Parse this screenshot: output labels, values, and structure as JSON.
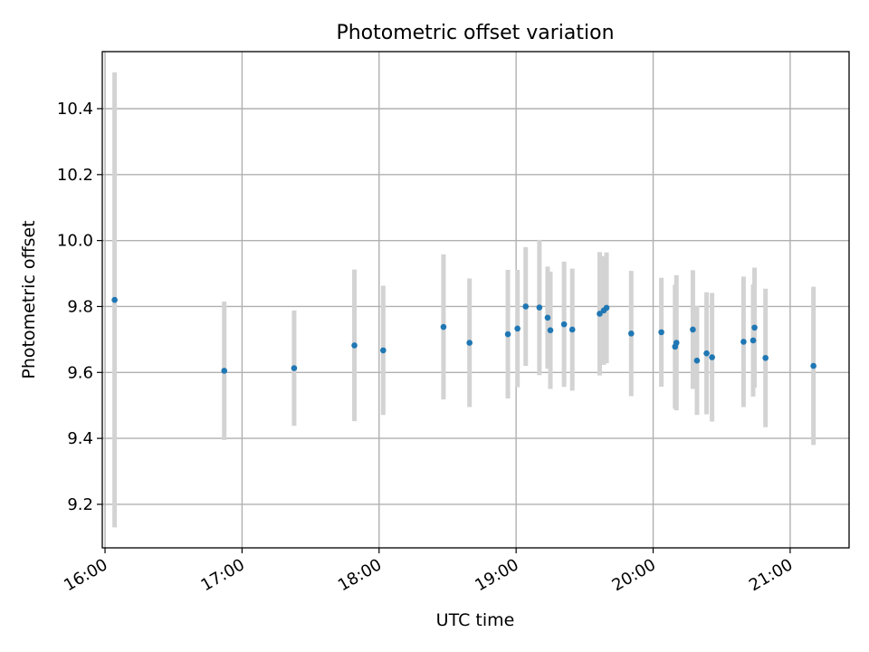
{
  "chart_data": {
    "type": "scatter",
    "title": "Photometric offset variation",
    "xlabel": "UTC time",
    "ylabel": "Photometric offset",
    "x_unit": "hours UTC",
    "xlim": [
      15.98,
      21.43
    ],
    "ylim": [
      9.068,
      10.573
    ],
    "xticks": [
      16,
      17,
      18,
      19,
      20,
      21
    ],
    "xtick_labels": [
      "16:00",
      "17:00",
      "18:00",
      "19:00",
      "20:00",
      "21:00"
    ],
    "yticks": [
      9.2,
      9.4,
      9.6,
      9.8,
      10.0,
      10.2,
      10.4
    ],
    "ytick_labels": [
      "9.2",
      "9.4",
      "9.6",
      "9.8",
      "10.0",
      "10.2",
      "10.4"
    ],
    "grid": true,
    "colors": {
      "point": "#1f77b4",
      "errorbar": "#d3d3d3"
    },
    "series": [
      {
        "points": [
          {
            "x": 16.07,
            "y": 9.82,
            "err": 0.69
          },
          {
            "x": 16.87,
            "y": 9.605,
            "err": 0.21
          },
          {
            "x": 17.38,
            "y": 9.613,
            "err": 0.175
          },
          {
            "x": 17.82,
            "y": 9.682,
            "err": 0.23
          },
          {
            "x": 18.03,
            "y": 9.667,
            "err": 0.196
          },
          {
            "x": 18.47,
            "y": 9.738,
            "err": 0.22
          },
          {
            "x": 18.66,
            "y": 9.69,
            "err": 0.195
          },
          {
            "x": 18.94,
            "y": 9.716,
            "err": 0.195
          },
          {
            "x": 19.01,
            "y": 9.733,
            "err": 0.178
          },
          {
            "x": 19.07,
            "y": 9.8,
            "err": 0.18
          },
          {
            "x": 19.17,
            "y": 9.797,
            "err": 0.205
          },
          {
            "x": 19.23,
            "y": 9.766,
            "err": 0.155
          },
          {
            "x": 19.25,
            "y": 9.728,
            "err": 0.178
          },
          {
            "x": 19.35,
            "y": 9.746,
            "err": 0.19
          },
          {
            "x": 19.41,
            "y": 9.73,
            "err": 0.185
          },
          {
            "x": 19.61,
            "y": 9.778,
            "err": 0.187
          },
          {
            "x": 19.64,
            "y": 9.788,
            "err": 0.165
          },
          {
            "x": 19.66,
            "y": 9.796,
            "err": 0.168
          },
          {
            "x": 19.84,
            "y": 9.718,
            "err": 0.19
          },
          {
            "x": 20.06,
            "y": 9.722,
            "err": 0.165
          },
          {
            "x": 20.16,
            "y": 9.678,
            "err": 0.188
          },
          {
            "x": 20.17,
            "y": 9.69,
            "err": 0.205
          },
          {
            "x": 20.29,
            "y": 9.73,
            "err": 0.18
          },
          {
            "x": 20.32,
            "y": 9.636,
            "err": 0.165
          },
          {
            "x": 20.39,
            "y": 9.658,
            "err": 0.185
          },
          {
            "x": 20.43,
            "y": 9.646,
            "err": 0.195
          },
          {
            "x": 20.66,
            "y": 9.693,
            "err": 0.198
          },
          {
            "x": 20.73,
            "y": 9.697,
            "err": 0.17
          },
          {
            "x": 20.74,
            "y": 9.736,
            "err": 0.182
          },
          {
            "x": 20.82,
            "y": 9.644,
            "err": 0.21
          },
          {
            "x": 21.17,
            "y": 9.62,
            "err": 0.24
          }
        ]
      }
    ]
  }
}
